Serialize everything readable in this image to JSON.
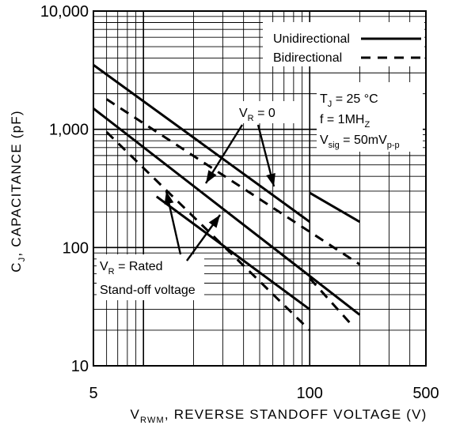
{
  "chart_data": {
    "type": "line",
    "x_scale": "log",
    "y_scale": "log",
    "xlim": [
      5,
      500
    ],
    "ylim": [
      10,
      10000
    ],
    "x_ticks": [
      {
        "value": 5,
        "label": "5"
      },
      {
        "value": 100,
        "label": "100"
      },
      {
        "value": 500,
        "label": "500"
      }
    ],
    "y_ticks": [
      {
        "value": 10,
        "label": "10"
      },
      {
        "value": 100,
        "label": "100"
      },
      {
        "value": 1000,
        "label": "1,000"
      },
      {
        "value": 10000,
        "label": "10,000"
      }
    ],
    "xlabel": {
      "prefix": "V",
      "sub": "RWM",
      "rest": ", REVERSE STANDOFF VOLTAGE (V)"
    },
    "ylabel": {
      "prefix": "C",
      "sub": "J",
      "rest": ", CAPACITANCE (pF)"
    },
    "grid": true,
    "legend_position": "top-right",
    "legend": [
      {
        "name": "Unidirectional",
        "style": "solid"
      },
      {
        "name": "Bidirectional",
        "style": "dashed"
      }
    ],
    "conditions": [
      {
        "prefix": "T",
        "sub": "J",
        "rest": " = 25 °C"
      },
      {
        "prefix": "f = 1MH",
        "sub": "Z",
        "rest": ""
      },
      {
        "prefix": "V",
        "sub": "sig",
        "rest": " = 50mV",
        "sub2": "p-p"
      }
    ],
    "annotation_vr0": {
      "prefix": "V",
      "sub": "R",
      "rest": " = 0"
    },
    "annotation_rated": {
      "line1_prefix": "V",
      "line1_sub": "R",
      "line1_rest": " = Rated",
      "line2": "Stand-off voltage"
    },
    "series": [
      {
        "name": "Unidirectional",
        "condition": "VR = 0",
        "style": "solid",
        "points": [
          [
            5,
            3500
          ],
          [
            100,
            165
          ]
        ]
      },
      {
        "name": "Unidirectional",
        "condition": "VR = 0",
        "style": "solid",
        "points": [
          [
            100,
            290
          ],
          [
            200,
            165
          ]
        ]
      },
      {
        "name": "Unidirectional",
        "condition": "VR = Rated",
        "style": "solid",
        "points": [
          [
            5,
            1500
          ],
          [
            200,
            27
          ]
        ]
      },
      {
        "name": "Bidirectional",
        "condition": "VR = 0",
        "style": "dashed",
        "points": [
          [
            6,
            1800
          ],
          [
            200,
            72
          ]
        ]
      },
      {
        "name": "Bidirectional",
        "condition": "VR = Rated",
        "style": "dashed",
        "points": [
          [
            6,
            950
          ],
          [
            100,
            20
          ]
        ]
      },
      {
        "name": "Unidirectional",
        "condition": "VR = Rated",
        "style": "solid",
        "points": [
          [
            12,
            270
          ],
          [
            100,
            30
          ]
        ]
      },
      {
        "name": "Bidirectional",
        "condition": "VR = Rated",
        "style": "dashed",
        "points": [
          [
            100,
            55
          ],
          [
            180,
            22
          ]
        ]
      }
    ]
  }
}
